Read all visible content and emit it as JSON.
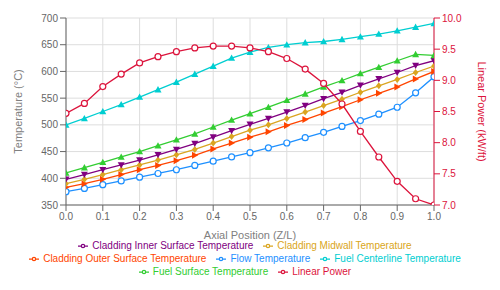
{
  "chart_data": {
    "type": "line",
    "x": [
      0.0,
      0.05,
      0.1,
      0.15,
      0.2,
      0.25,
      0.3,
      0.35,
      0.4,
      0.45,
      0.5,
      0.55,
      0.6,
      0.65,
      0.7,
      0.75,
      0.8,
      0.85,
      0.9,
      0.95,
      1.0
    ],
    "series": [
      {
        "name": "Flow Temperature",
        "color": "#1E90FF",
        "marker": "open_circle",
        "values": [
          375,
          381,
          388,
          395,
          402,
          409,
          416,
          424,
          432,
          440,
          448,
          457,
          466,
          476,
          486,
          497,
          508,
          520,
          533,
          560,
          590
        ]
      },
      {
        "name": "Cladding Outer Surface Temperature",
        "color": "#FF4500",
        "marker": "triangle_right",
        "values": [
          383,
          390,
          398,
          407,
          416,
          424,
          433,
          443,
          455,
          466,
          477,
          487,
          499,
          510,
          522,
          534,
          547,
          559,
          571,
          586,
          600
        ]
      },
      {
        "name": "Cladding Midwall Temperature",
        "color": "#DAA520",
        "marker": "diamond",
        "values": [
          390,
          398,
          407,
          416,
          425,
          434,
          444,
          454,
          466,
          478,
          490,
          500,
          512,
          524,
          536,
          548,
          561,
          573,
          585,
          598,
          610
        ]
      },
      {
        "name": "Cladding Inner Surface Temperature",
        "color": "#800080",
        "marker": "triangle_down",
        "values": [
          398,
          407,
          416,
          425,
          434,
          444,
          454,
          465,
          477,
          489,
          501,
          512,
          524,
          536,
          549,
          561,
          574,
          586,
          598,
          611,
          620
        ]
      },
      {
        "name": "Fuel Surface Temperature",
        "color": "#32CD32",
        "marker": "triangle_up",
        "values": [
          410,
          420,
          430,
          440,
          450,
          461,
          472,
          483,
          496,
          509,
          521,
          533,
          546,
          558,
          571,
          583,
          596,
          608,
          620,
          632,
          630
        ]
      },
      {
        "name": "Fuel Centerline Temperature",
        "color": "#00CED1",
        "marker": "triangle_up",
        "values": [
          500,
          512,
          525,
          538,
          552,
          566,
          580,
          595,
          610,
          625,
          636,
          645,
          650,
          654,
          656,
          660,
          665,
          670,
          676,
          683,
          690
        ]
      },
      {
        "name": "Linear Power",
        "color": "#DC143C",
        "marker": "open_circle",
        "axis": "y2",
        "values": [
          8.47,
          8.63,
          8.9,
          9.1,
          9.28,
          9.38,
          9.46,
          9.52,
          9.55,
          9.55,
          9.52,
          9.46,
          9.35,
          9.18,
          8.95,
          8.62,
          8.18,
          7.77,
          7.38,
          7.1,
          7.0
        ]
      }
    ],
    "xlabel": "Axial Position (Z/L)",
    "ylabel": "Temperature (°C)",
    "y2label": "Linear Power (kW/ft)",
    "xlim": [
      0,
      1
    ],
    "xticks": [
      {
        "value": 0,
        "label": "0.0"
      },
      0.1,
      0.2,
      0.3,
      0.4,
      0.5,
      0.6,
      0.7,
      0.8,
      0.9,
      {
        "value": 1,
        "label": "1.0"
      }
    ],
    "ylim": [
      350,
      700
    ],
    "yticks": [
      350,
      400,
      450,
      500,
      550,
      600,
      650,
      700
    ],
    "y2lim": [
      7,
      10
    ],
    "y2ticks": [
      {
        "value": 7,
        "label": "7.0"
      },
      7.5,
      {
        "value": 8,
        "label": "8.0"
      },
      8.5,
      {
        "value": 9,
        "label": "9.0"
      },
      9.5,
      {
        "value": 10,
        "label": "10.0"
      }
    ],
    "grid": true,
    "legend": "bottom"
  }
}
